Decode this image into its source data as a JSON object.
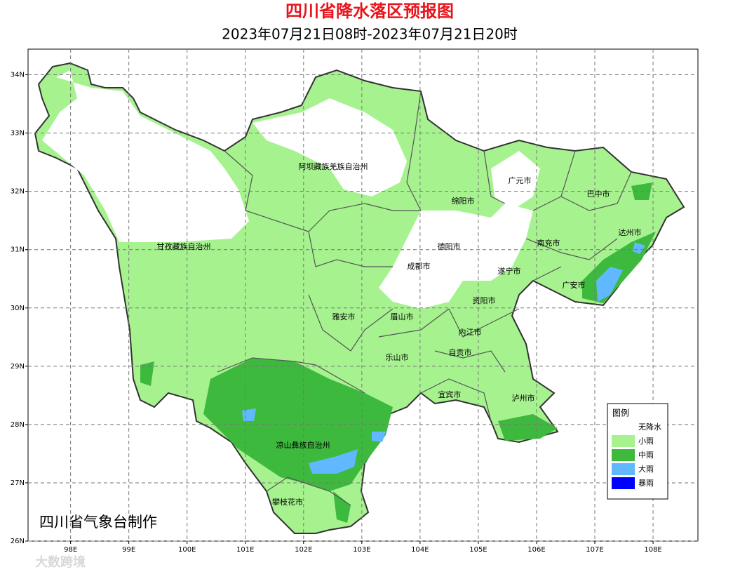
{
  "header": {
    "title": "四川省降水落区预报图",
    "subtitle": "2023年07月21日08时-2023年07月21日20时"
  },
  "map": {
    "xlim": [
      97.27,
      108.77
    ],
    "ylim": [
      26,
      34.44
    ],
    "grid": true,
    "lon_ticks": [
      {
        "value": 98,
        "label": "98E"
      },
      {
        "value": 99,
        "label": "99E"
      },
      {
        "value": 100,
        "label": "100E"
      },
      {
        "value": 101,
        "label": "101E"
      },
      {
        "value": 102,
        "label": "102E"
      },
      {
        "value": 103,
        "label": "103E"
      },
      {
        "value": 104,
        "label": "104E"
      },
      {
        "value": 105,
        "label": "105E"
      },
      {
        "value": 106,
        "label": "106E"
      },
      {
        "value": 107,
        "label": "107E"
      },
      {
        "value": 108,
        "label": "108E"
      }
    ],
    "lat_ticks": [
      {
        "value": 26,
        "label": "26N"
      },
      {
        "value": 27,
        "label": "27N"
      },
      {
        "value": 28,
        "label": "28N"
      },
      {
        "value": 29,
        "label": "29N"
      },
      {
        "value": 30,
        "label": "30N"
      },
      {
        "value": 31,
        "label": "31N"
      },
      {
        "value": 32,
        "label": "32N"
      },
      {
        "value": 33,
        "label": "33N"
      },
      {
        "value": 34,
        "label": "34N"
      }
    ],
    "regions": [
      "阿坝藏族羌族自治州",
      "甘孜藏族自治州",
      "广元市",
      "巴中市",
      "绵阳市",
      "达州市",
      "德阳市",
      "南充市",
      "成都市",
      "遂宁市",
      "广安市",
      "雅安市",
      "眉山市",
      "资阳市",
      "内江市",
      "自贡市",
      "乐山市",
      "宜宾市",
      "泸州市",
      "凉山彝族自治州",
      "攀枝花市"
    ]
  },
  "legend": {
    "title": "图例",
    "items": [
      {
        "label": "无降水",
        "color": "#ffffff"
      },
      {
        "label": "小雨",
        "color": "#a6f28f"
      },
      {
        "label": "中雨",
        "color": "#3dba3d"
      },
      {
        "label": "大雨",
        "color": "#61b8ff"
      },
      {
        "label": "暴雨",
        "color": "#0000fe"
      }
    ]
  },
  "credit": "四川省气象台制作",
  "watermark": "大数跨境"
}
